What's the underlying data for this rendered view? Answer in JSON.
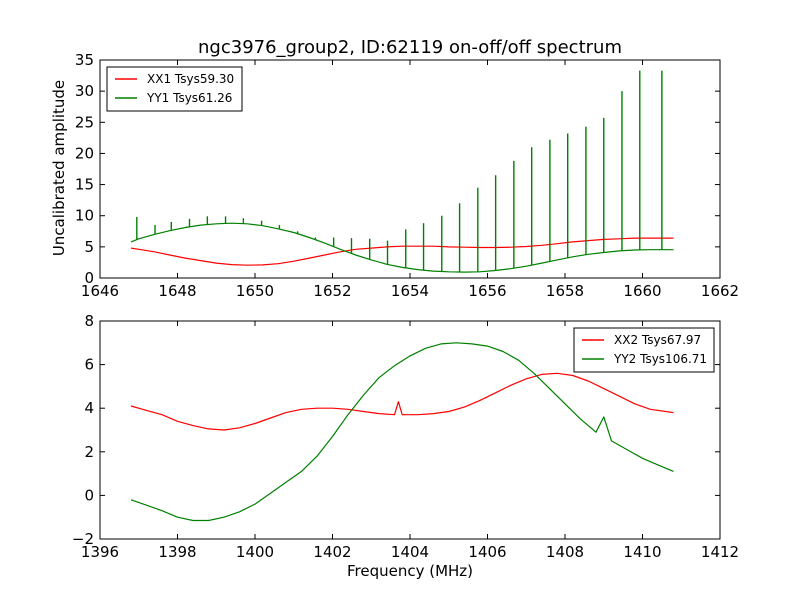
{
  "chart_data": [
    {
      "type": "line",
      "title": "ngc3976_group2, ID:62119 on-off/off spectrum",
      "ylabel": "Uncalibrated amplitude",
      "xlabel": "",
      "xlim": [
        1646,
        1662
      ],
      "ylim": [
        0,
        35
      ],
      "xticks": [
        1646,
        1648,
        1650,
        1652,
        1654,
        1656,
        1658,
        1660,
        1662
      ],
      "yticks": [
        0,
        5,
        10,
        15,
        20,
        25,
        30,
        35
      ],
      "grid": false,
      "legend": "top-left",
      "series": [
        {
          "name": "XX1 Tsys59.30",
          "color": "#ff0000",
          "x": [
            1646.8,
            1647.0,
            1647.4,
            1647.8,
            1648.2,
            1648.6,
            1649.0,
            1649.4,
            1649.8,
            1650.2,
            1650.6,
            1651.0,
            1651.4,
            1651.8,
            1652.2,
            1652.6,
            1653.0,
            1653.4,
            1653.8,
            1654.2,
            1654.6,
            1655.0,
            1655.4,
            1655.8,
            1656.2,
            1656.6,
            1657.0,
            1657.4,
            1657.8,
            1658.2,
            1658.6,
            1659.0,
            1659.4,
            1659.8,
            1660.2,
            1660.8
          ],
          "y": [
            4.8,
            4.6,
            4.2,
            3.7,
            3.2,
            2.8,
            2.4,
            2.15,
            2.05,
            2.1,
            2.3,
            2.7,
            3.2,
            3.7,
            4.2,
            4.6,
            4.8,
            5.0,
            5.1,
            5.1,
            5.1,
            5.0,
            4.95,
            4.9,
            4.9,
            4.95,
            5.05,
            5.25,
            5.5,
            5.8,
            6.0,
            6.2,
            6.3,
            6.4,
            6.4,
            6.4
          ]
        },
        {
          "name": "YY1 Tsys61.26",
          "color": "#008000",
          "x": [
            1646.8,
            1647.0,
            1647.4,
            1647.8,
            1648.2,
            1648.6,
            1649.0,
            1649.4,
            1649.8,
            1650.2,
            1650.6,
            1651.0,
            1651.4,
            1651.8,
            1652.2,
            1652.6,
            1653.0,
            1653.4,
            1653.8,
            1654.2,
            1654.6,
            1655.0,
            1655.4,
            1655.8,
            1656.2,
            1656.6,
            1657.0,
            1657.4,
            1657.8,
            1658.2,
            1658.6,
            1659.0,
            1659.4,
            1659.8,
            1660.2,
            1660.8
          ],
          "y": [
            5.8,
            6.3,
            7.0,
            7.6,
            8.1,
            8.5,
            8.7,
            8.8,
            8.7,
            8.4,
            7.9,
            7.3,
            6.5,
            5.6,
            4.6,
            3.7,
            2.9,
            2.2,
            1.7,
            1.35,
            1.1,
            1.0,
            0.95,
            1.0,
            1.2,
            1.5,
            1.9,
            2.4,
            2.9,
            3.4,
            3.8,
            4.1,
            4.35,
            4.5,
            4.55,
            4.55
          ]
        }
      ],
      "spikes": {
        "series": "YY1 Tsys61.26",
        "x": [
          1646.95,
          1647.42,
          1647.84,
          1648.31,
          1648.77,
          1649.24,
          1649.7,
          1650.17,
          1650.63,
          1651.1,
          1651.56,
          1652.03,
          1652.49,
          1652.96,
          1653.42,
          1653.89,
          1654.35,
          1654.82,
          1655.28,
          1655.75,
          1656.21,
          1656.68,
          1657.14,
          1657.61,
          1658.07,
          1658.54,
          1659.0,
          1659.47,
          1659.93,
          1660.5
        ],
        "y": [
          9.8,
          8.5,
          9.0,
          9.5,
          9.9,
          9.9,
          9.6,
          9.2,
          8.5,
          7.5,
          6.5,
          6.5,
          6.4,
          6.3,
          6.0,
          7.8,
          8.8,
          10.0,
          12.0,
          14.5,
          16.5,
          18.8,
          21.0,
          22.2,
          23.2,
          24.3,
          25.7,
          30.0,
          33.3,
          33.3
        ]
      }
    },
    {
      "type": "line",
      "title": "",
      "ylabel": "",
      "xlabel": "Frequency (MHz)",
      "xlim": [
        1396,
        1412
      ],
      "ylim": [
        -2,
        8
      ],
      "xticks": [
        1396,
        1398,
        1400,
        1402,
        1404,
        1406,
        1408,
        1410,
        1412
      ],
      "yticks": [
        -2,
        0,
        2,
        4,
        6,
        8
      ],
      "grid": false,
      "legend": "top-right",
      "series": [
        {
          "name": "XX2 Tsys67.97",
          "color": "#ff0000",
          "x": [
            1396.8,
            1397.2,
            1397.6,
            1398.0,
            1398.4,
            1398.8,
            1399.2,
            1399.6,
            1400.0,
            1400.4,
            1400.8,
            1401.2,
            1401.6,
            1402.0,
            1402.4,
            1402.8,
            1403.2,
            1403.6,
            1403.7,
            1403.8,
            1404.2,
            1404.6,
            1405.0,
            1405.4,
            1405.8,
            1406.2,
            1406.6,
            1407.0,
            1407.4,
            1407.8,
            1408.2,
            1408.6,
            1409.0,
            1409.4,
            1409.8,
            1410.2,
            1410.8
          ],
          "y": [
            4.1,
            3.9,
            3.7,
            3.4,
            3.2,
            3.05,
            3.0,
            3.1,
            3.3,
            3.55,
            3.8,
            3.95,
            4.0,
            4.0,
            3.95,
            3.85,
            3.75,
            3.7,
            4.3,
            3.7,
            3.7,
            3.75,
            3.85,
            4.05,
            4.35,
            4.7,
            5.05,
            5.35,
            5.55,
            5.6,
            5.5,
            5.25,
            4.9,
            4.55,
            4.2,
            3.95,
            3.8
          ]
        },
        {
          "name": "YY2 Tsys106.71",
          "color": "#008000",
          "x": [
            1396.8,
            1397.2,
            1397.6,
            1398.0,
            1398.4,
            1398.8,
            1399.2,
            1399.6,
            1400.0,
            1400.4,
            1400.8,
            1401.2,
            1401.6,
            1402.0,
            1402.4,
            1402.8,
            1403.2,
            1403.6,
            1404.0,
            1404.4,
            1404.8,
            1405.2,
            1405.6,
            1406.0,
            1406.4,
            1406.8,
            1407.2,
            1407.6,
            1408.0,
            1408.4,
            1408.8,
            1409.0,
            1409.2,
            1409.6,
            1410.0,
            1410.4,
            1410.8
          ],
          "y": [
            -0.2,
            -0.45,
            -0.7,
            -1.0,
            -1.15,
            -1.15,
            -1.0,
            -0.75,
            -0.4,
            0.1,
            0.6,
            1.1,
            1.8,
            2.7,
            3.7,
            4.6,
            5.4,
            5.95,
            6.4,
            6.75,
            6.95,
            7.0,
            6.95,
            6.85,
            6.6,
            6.2,
            5.6,
            4.9,
            4.2,
            3.5,
            2.9,
            3.6,
            2.5,
            2.1,
            1.7,
            1.4,
            1.1
          ]
        }
      ]
    }
  ]
}
